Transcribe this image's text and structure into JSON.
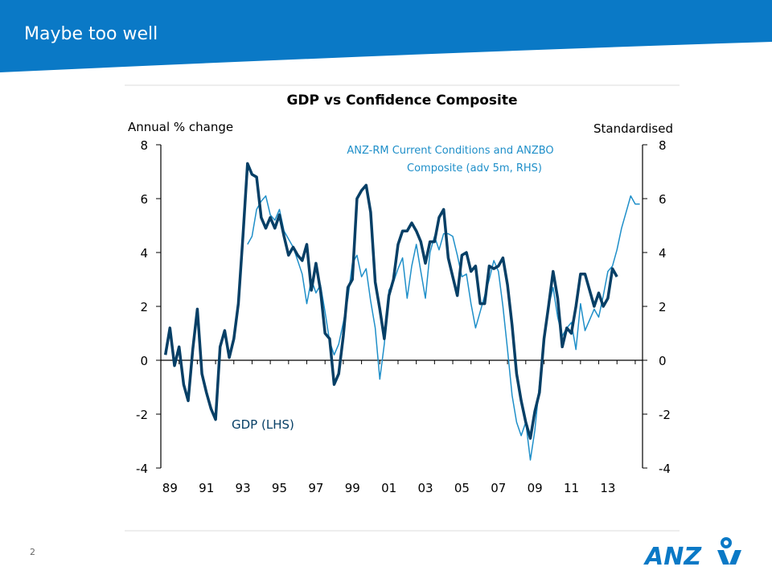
{
  "slide": {
    "title": "Maybe too well",
    "page_number": "2",
    "brand": "ANZ"
  },
  "colors": {
    "banner": "#0a79c6",
    "gdp_line": "#063f66",
    "confidence_line": "#1f8fc9",
    "annotation_text": "#1f8fc9",
    "gdp_label_text": "#063f66"
  },
  "chart_data": {
    "type": "line",
    "title": "GDP vs Confidence Composite",
    "ylabel_left": "Annual % change",
    "ylabel_right": "Standardised",
    "ylim_left": [
      -4,
      8
    ],
    "ylim_right": [
      -4,
      8
    ],
    "yticks_left": [
      "8",
      "6",
      "4",
      "2",
      "0",
      "-2",
      "-4"
    ],
    "yticks_right": [
      "8",
      "6",
      "4",
      "2",
      "0",
      "-2",
      "-4"
    ],
    "xlim": [
      1989,
      2015.4
    ],
    "xticks": [
      "89",
      "91",
      "93",
      "95",
      "97",
      "99",
      "01",
      "03",
      "05",
      "07",
      "09",
      "11",
      "13"
    ],
    "grid": false,
    "annotations": [
      {
        "text_line1": "ANZ-RM Current Conditions and ANZBO",
        "text_line2": "Composite (adv 5m, RHS)",
        "series": "confidence"
      },
      {
        "text": "GDP (LHS)",
        "series": "gdp"
      }
    ],
    "series": [
      {
        "name": "GDP (LHS)",
        "axis": "left",
        "x": [
          1989.25,
          1989.5,
          1989.75,
          1990,
          1990.25,
          1990.5,
          1990.75,
          1991,
          1991.25,
          1991.5,
          1991.75,
          1992,
          1992.25,
          1992.5,
          1992.75,
          1993,
          1993.25,
          1993.5,
          1993.75,
          1994,
          1994.25,
          1994.5,
          1994.75,
          1995,
          1995.25,
          1995.5,
          1995.75,
          1996,
          1996.25,
          1996.5,
          1996.75,
          1997,
          1997.25,
          1997.5,
          1997.75,
          1998,
          1998.25,
          1998.5,
          1998.75,
          1999,
          1999.25,
          1999.5,
          1999.75,
          2000,
          2000.25,
          2000.5,
          2000.75,
          2001,
          2001.25,
          2001.5,
          2001.75,
          2002,
          2002.25,
          2002.5,
          2002.75,
          2003,
          2003.25,
          2003.5,
          2003.75,
          2004,
          2004.25,
          2004.5,
          2004.75,
          2005,
          2005.25,
          2005.5,
          2005.75,
          2006,
          2006.25,
          2006.5,
          2006.75,
          2007,
          2007.25,
          2007.5,
          2007.75,
          2008,
          2008.25,
          2008.5,
          2008.75,
          2009,
          2009.25,
          2009.5,
          2009.75,
          2010,
          2010.25,
          2010.5,
          2010.75,
          2011,
          2011.25,
          2011.5,
          2011.75,
          2012,
          2012.25,
          2012.5,
          2012.75,
          2013,
          2013.25,
          2013.5,
          2013.75,
          2014
        ],
        "y": [
          0.2,
          1.2,
          -0.2,
          0.5,
          -0.9,
          -1.5,
          0.4,
          1.9,
          -0.5,
          -1.2,
          -1.8,
          -2.2,
          0.5,
          1.1,
          0.1,
          0.8,
          2.1,
          4.6,
          7.3,
          6.9,
          6.8,
          5.3,
          4.9,
          5.3,
          4.9,
          5.4,
          4.6,
          3.9,
          4.2,
          3.9,
          3.7,
          4.3,
          2.6,
          3.6,
          2.6,
          1.0,
          0.8,
          -0.9,
          -0.5,
          0.9,
          2.7,
          3.0,
          6.0,
          6.3,
          6.5,
          5.5,
          2.9,
          1.9,
          0.8,
          2.4,
          3.0,
          4.3,
          4.8,
          4.8,
          5.1,
          4.8,
          4.4,
          3.6,
          4.4,
          4.4,
          5.3,
          5.6,
          3.8,
          3.1,
          2.4,
          3.9,
          4.0,
          3.3,
          3.5,
          2.1,
          2.1,
          3.5,
          3.4,
          3.5,
          3.8,
          2.8,
          1.3,
          -0.5,
          -1.5,
          -2.3,
          -2.9,
          -1.9,
          -1.2,
          0.8,
          2.0,
          3.3,
          2.3,
          0.5,
          1.2,
          1.0,
          2.0,
          3.2,
          3.2,
          2.6,
          2.0,
          2.5,
          2.0,
          2.3,
          3.4,
          3.1
        ]
      },
      {
        "name": "ANZ-RM Current Conditions and ANZBO Composite (adv 5m, RHS)",
        "axis": "right",
        "x": [
          1993.75,
          1994,
          1994.25,
          1994.5,
          1994.75,
          1995,
          1995.25,
          1995.5,
          1995.75,
          1996,
          1996.25,
          1996.5,
          1996.75,
          1997,
          1997.25,
          1997.5,
          1997.75,
          1998,
          1998.25,
          1998.5,
          1998.75,
          1999,
          1999.25,
          1999.5,
          1999.75,
          2000,
          2000.25,
          2000.5,
          2000.75,
          2001,
          2001.25,
          2001.5,
          2001.75,
          2002,
          2002.25,
          2002.5,
          2002.75,
          2003,
          2003.25,
          2003.5,
          2003.75,
          2004,
          2004.25,
          2004.5,
          2004.75,
          2005,
          2005.25,
          2005.5,
          2005.75,
          2006,
          2006.25,
          2006.5,
          2006.75,
          2007,
          2007.25,
          2007.5,
          2007.75,
          2008,
          2008.25,
          2008.5,
          2008.75,
          2009,
          2009.25,
          2009.5,
          2009.75,
          2010,
          2010.25,
          2010.5,
          2010.75,
          2011,
          2011.25,
          2011.5,
          2011.75,
          2012,
          2012.25,
          2012.5,
          2012.75,
          2013,
          2013.25,
          2013.5,
          2013.75,
          2014,
          2014.25,
          2014.5,
          2014.75,
          2015,
          2015.25
        ],
        "y": [
          4.3,
          4.6,
          5.6,
          5.9,
          6.1,
          5.4,
          5.2,
          5.6,
          4.8,
          4.5,
          4.2,
          3.7,
          3.2,
          2.1,
          3.0,
          2.5,
          2.8,
          1.8,
          0.7,
          0.2,
          0.6,
          1.4,
          2.3,
          3.6,
          3.9,
          3.1,
          3.4,
          2.2,
          1.2,
          -0.7,
          0.6,
          2.6,
          2.9,
          3.4,
          3.8,
          2.3,
          3.5,
          4.3,
          3.3,
          2.3,
          4.0,
          4.6,
          4.1,
          4.7,
          4.7,
          4.6,
          3.9,
          3.1,
          3.2,
          2.1,
          1.2,
          1.8,
          2.4,
          3.0,
          3.7,
          3.3,
          2.0,
          0.4,
          -1.3,
          -2.3,
          -2.8,
          -2.3,
          -3.7,
          -2.6,
          -0.9,
          0.9,
          2.0,
          2.7,
          1.6,
          0.9,
          1.2,
          1.4,
          0.4,
          2.1,
          1.1,
          1.5,
          1.9,
          1.6,
          2.4,
          3.3,
          3.5,
          4.1,
          4.9,
          5.5,
          6.1,
          5.8,
          5.8
        ]
      }
    ]
  }
}
